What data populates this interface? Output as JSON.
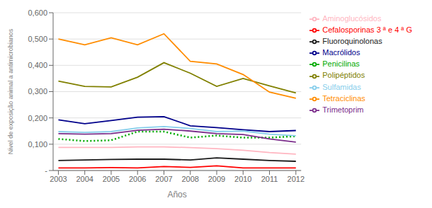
{
  "chart_data": {
    "type": "line",
    "xlabel": "Años",
    "ylabel": "Nivel de exposição animal a antimicrobianos",
    "x": [
      2003,
      2004,
      2005,
      2006,
      2007,
      2008,
      2009,
      2010,
      2011,
      2012
    ],
    "xlim": [
      2002.8,
      2012.2
    ],
    "xticks": [
      2003,
      2004,
      2005,
      2006,
      2007,
      2008,
      2009,
      2010,
      2011,
      2012
    ],
    "ylim": [
      0,
      0.6
    ],
    "yticks": [
      {
        "value": 0,
        "label": "-"
      },
      {
        "value": 0.1,
        "label": "0,100"
      },
      {
        "value": 0.2,
        "label": "0,200"
      },
      {
        "value": 0.3,
        "label": "0,300"
      },
      {
        "value": 0.4,
        "label": "0,400"
      },
      {
        "value": 0.5,
        "label": "0,500"
      },
      {
        "value": 0.6,
        "label": "0,600"
      }
    ],
    "grid": true,
    "legend": "right",
    "series": [
      {
        "name": "Polipéptidos",
        "color": "#808000",
        "line_style": "solid",
        "values": [
          0.34,
          0.32,
          0.318,
          0.355,
          0.41,
          0.37,
          0.32,
          0.35,
          0.322,
          0.295
        ]
      },
      {
        "name": "Tetraciclinas",
        "color": "#FF8C00",
        "line_style": "solid",
        "values": [
          0.5,
          0.478,
          0.505,
          0.478,
          0.52,
          0.415,
          0.405,
          0.365,
          0.298,
          0.275
        ]
      },
      {
        "name": "Penicilinas",
        "color": "#00AA00",
        "line_style": "dotted",
        "values": [
          0.12,
          0.112,
          0.115,
          0.148,
          0.148,
          0.125,
          0.133,
          0.125,
          0.125,
          0.13
        ]
      },
      {
        "name": "Macrólidos",
        "color": "#00008B",
        "line_style": "solid",
        "values": [
          0.193,
          0.178,
          0.19,
          0.203,
          0.205,
          0.17,
          0.163,
          0.155,
          0.148,
          0.152
        ]
      },
      {
        "name": "Sulfamidas",
        "color": "#87CEEB",
        "line_style": "solid",
        "values": [
          0.148,
          0.145,
          0.148,
          0.162,
          0.167,
          0.16,
          0.148,
          0.15,
          0.138,
          0.132
        ]
      },
      {
        "name": "Trimetoprim",
        "color": "#7B2D8B",
        "line_style": "solid",
        "values": [
          0.14,
          0.138,
          0.14,
          0.153,
          0.157,
          0.15,
          0.14,
          0.137,
          0.12,
          0.108
        ]
      },
      {
        "name": "Aminoglucósidos",
        "color": "#FFB6C1",
        "line_style": "solid",
        "values": [
          0.088,
          0.088,
          0.088,
          0.09,
          0.09,
          0.087,
          0.083,
          0.077,
          0.068,
          0.062
        ]
      },
      {
        "name": "Fluoroquinolonas",
        "color": "#1a1a1a",
        "line_style": "solid",
        "values": [
          0.038,
          0.04,
          0.042,
          0.043,
          0.043,
          0.04,
          0.048,
          0.043,
          0.038,
          0.035
        ]
      },
      {
        "name": "Cefalosporinas 3 ª e 4 ª G",
        "color": "#FF0000",
        "line_style": "solid",
        "values": [
          0.01,
          0.01,
          0.011,
          0.01,
          0.015,
          0.012,
          0.018,
          0.01,
          0.01,
          0.01
        ]
      }
    ]
  }
}
